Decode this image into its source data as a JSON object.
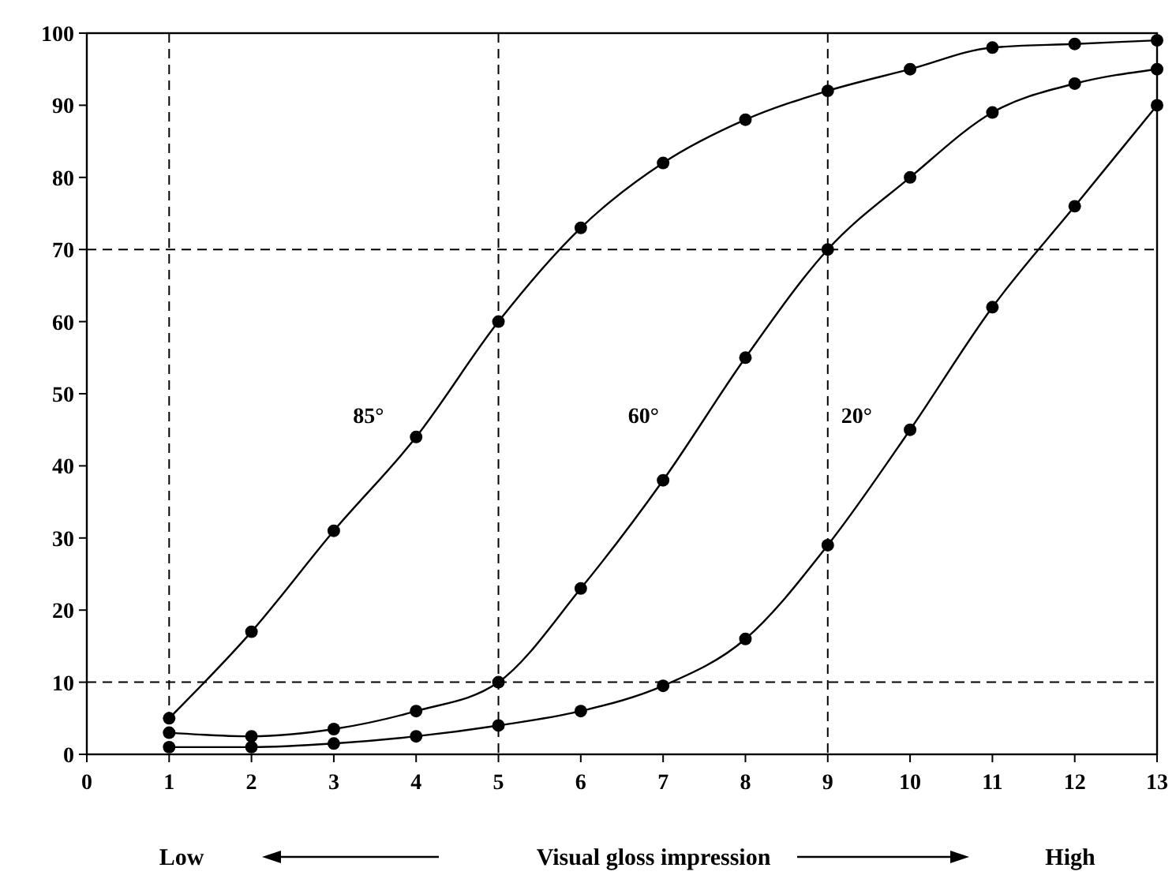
{
  "chart_data": {
    "type": "line",
    "xlabel": "Visual gloss impression",
    "x": [
      1,
      2,
      3,
      4,
      5,
      6,
      7,
      8,
      9,
      10,
      11,
      12,
      13
    ],
    "series": [
      {
        "name": "85°",
        "color": "#000000",
        "values": [
          5,
          17,
          31,
          44,
          60,
          73,
          82,
          88,
          92,
          95,
          98,
          98.5,
          99
        ]
      },
      {
        "name": "60°",
        "color": "#000000",
        "values": [
          3,
          2.5,
          3.5,
          6,
          10,
          23,
          38,
          55,
          70,
          80,
          89,
          93,
          95
        ]
      },
      {
        "name": "20°",
        "color": "#000000",
        "values": [
          1,
          1,
          1.5,
          2.5,
          4,
          6,
          9.5,
          16,
          29,
          45,
          62,
          76,
          90
        ]
      }
    ],
    "xlim": [
      0,
      13
    ],
    "xticks": [
      0,
      1,
      2,
      3,
      4,
      5,
      6,
      7,
      8,
      9,
      10,
      11,
      12,
      13
    ],
    "ylim": [
      0,
      100
    ],
    "yticks": [
      0,
      10,
      20,
      30,
      40,
      50,
      60,
      70,
      80,
      90,
      100
    ],
    "ref_lines": [
      {
        "axis": "x",
        "value": 1,
        "line_style": "dashed"
      },
      {
        "axis": "x",
        "value": 5,
        "line_style": "dashed"
      },
      {
        "axis": "x",
        "value": 9,
        "line_style": "dashed"
      },
      {
        "axis": "y",
        "value": 10,
        "line_style": "dashed"
      },
      {
        "axis": "y",
        "value": 70,
        "line_style": "dashed"
      }
    ],
    "annotations": [
      "Low",
      "High"
    ],
    "marker": "circle",
    "line_style": "solid",
    "grid": false
  }
}
